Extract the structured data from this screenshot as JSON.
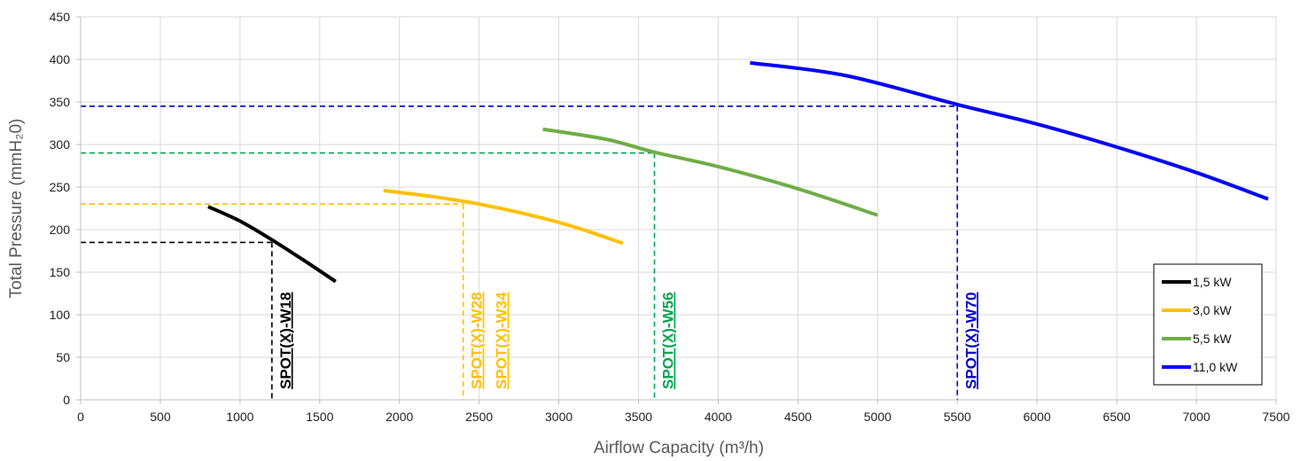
{
  "chart_data": {
    "type": "line",
    "xlabel": "Airflow Capacity (m³/h)",
    "ylabel": "Total Pressure (mmH₂0)",
    "xlim": [
      0,
      7500
    ],
    "ylim": [
      0,
      450
    ],
    "xticks": [
      0,
      500,
      1000,
      1500,
      2000,
      2500,
      3000,
      3500,
      4000,
      4500,
      5000,
      5500,
      6000,
      6500,
      7000,
      7500
    ],
    "yticks": [
      0,
      50,
      100,
      150,
      200,
      250,
      300,
      350,
      400,
      450
    ],
    "grid": true,
    "legend_position": "bottom-right",
    "series": [
      {
        "name": "1,5 kW",
        "color": "#000000",
        "points": [
          [
            800,
            227
          ],
          [
            1000,
            210
          ],
          [
            1200,
            188
          ],
          [
            1400,
            164
          ],
          [
            1600,
            139
          ]
        ]
      },
      {
        "name": "3,0 kW",
        "color": "#FFC000",
        "points": [
          [
            1900,
            246
          ],
          [
            2200,
            239
          ],
          [
            2500,
            230
          ],
          [
            2800,
            218
          ],
          [
            3100,
            203
          ],
          [
            3400,
            184
          ]
        ]
      },
      {
        "name": "5,5 kW",
        "color": "#70AD47",
        "points": [
          [
            2900,
            318
          ],
          [
            3300,
            306
          ],
          [
            3600,
            291
          ],
          [
            4000,
            274
          ],
          [
            4500,
            248
          ],
          [
            5000,
            217
          ]
        ]
      },
      {
        "name": "11,0 kW",
        "color": "#0000FF",
        "points": [
          [
            4200,
            396
          ],
          [
            4800,
            381
          ],
          [
            5500,
            347
          ],
          [
            6000,
            324
          ],
          [
            6500,
            297
          ],
          [
            7000,
            267
          ],
          [
            7450,
            236
          ]
        ]
      }
    ],
    "annotations": [
      {
        "label": "SPOT(X)-W18",
        "x": 1200,
        "y": 185,
        "color": "#000000"
      },
      {
        "label": "SPOT(X)-W28",
        "x": 2400,
        "y": 230,
        "color": "#FFC000"
      },
      {
        "label": "SPOT(X)-W34",
        "x": 2400,
        "y": 230,
        "color": "#FFC000"
      },
      {
        "label": "SPOT(X)-W56",
        "x": 3600,
        "y": 290,
        "color": "#00A651"
      },
      {
        "label": "SPOT(X)-W70",
        "x": 5500,
        "y": 345,
        "color": "#0000CC"
      }
    ]
  }
}
